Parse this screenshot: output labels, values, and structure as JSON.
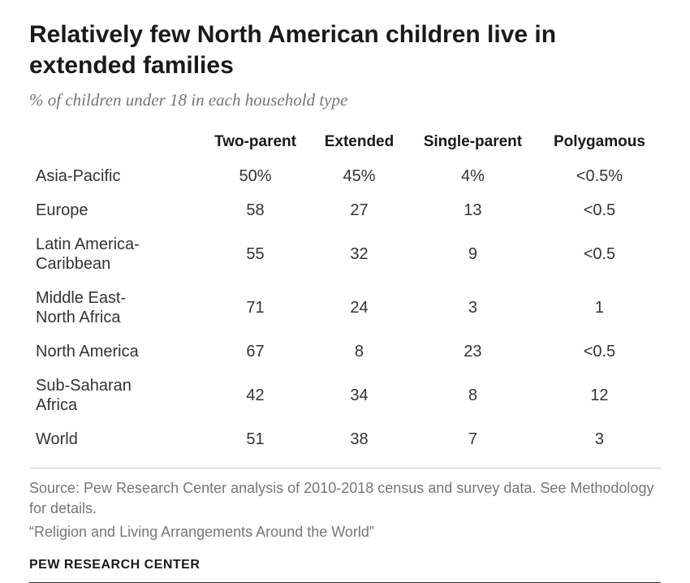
{
  "title": "Relatively few North American children live in extended families",
  "subtitle": "% of children under 18 in each household type",
  "table": {
    "columns": [
      "Two-parent",
      "Extended",
      "Single-parent",
      "Polygamous"
    ],
    "column_font_weight": 700,
    "column_font_size": 19,
    "cell_font_size": 20,
    "row_label_font_size": 20,
    "rows": [
      {
        "label": "Asia-Pacific",
        "values": [
          "50%",
          "45%",
          "4%",
          "<0.5%"
        ]
      },
      {
        "label": "Europe",
        "values": [
          "58",
          "27",
          "13",
          "<0.5"
        ]
      },
      {
        "label": "Latin America-\nCaribbean",
        "values": [
          "55",
          "32",
          "9",
          "<0.5"
        ]
      },
      {
        "label": "Middle East-\nNorth Africa",
        "values": [
          "71",
          "24",
          "3",
          "1"
        ]
      },
      {
        "label": "North America",
        "values": [
          "67",
          "8",
          "23",
          "<0.5"
        ]
      },
      {
        "label": "Sub-Saharan\nAfrica",
        "values": [
          "42",
          "34",
          "8",
          "12"
        ]
      },
      {
        "label": "World",
        "values": [
          "51",
          "38",
          "7",
          "3"
        ]
      }
    ]
  },
  "source": "Source: Pew Research Center analysis of 2010-2018 census and survey data. See Methodology for details.",
  "report": "“Religion and Living Arrangements Around the World”",
  "org": "PEW RESEARCH CENTER",
  "colors": {
    "text_primary": "#1a1a1a",
    "text_body": "#333333",
    "text_muted": "#767676",
    "divider": "#cccccc",
    "bottom_rule": "#333333",
    "background": "#ffffff"
  },
  "typography": {
    "title_size": 30,
    "subtitle_size": 21,
    "source_size": 18,
    "org_size": 16
  }
}
